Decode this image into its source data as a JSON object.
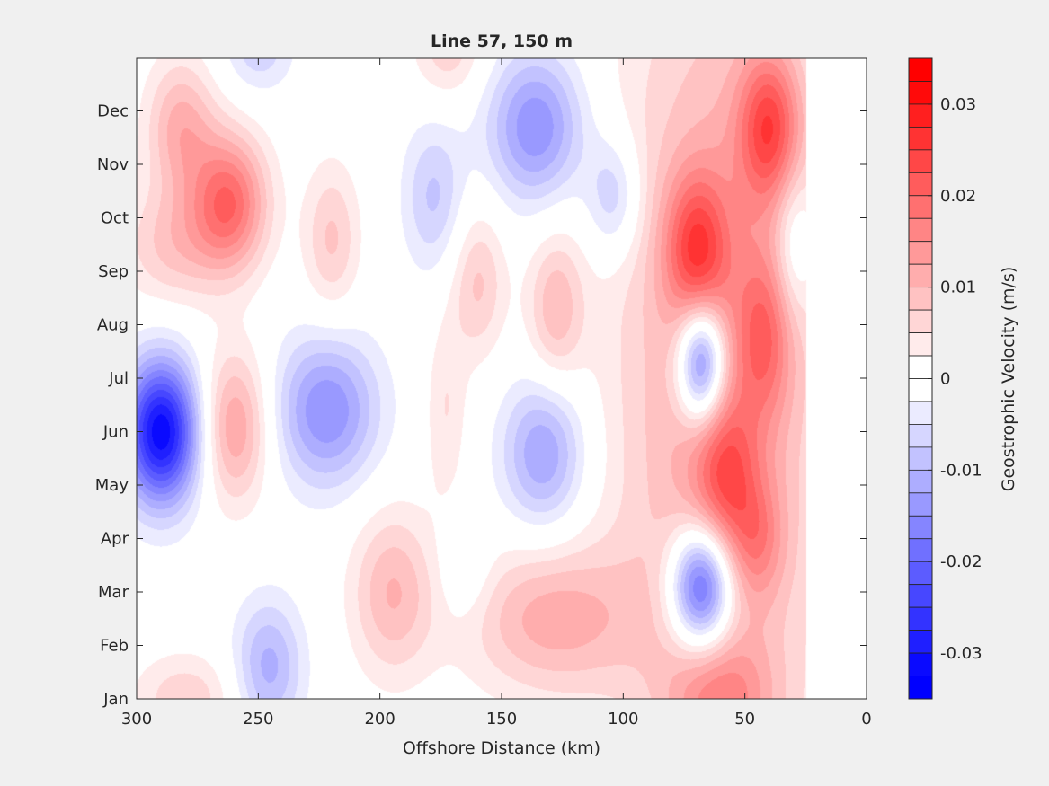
{
  "chart_data": {
    "type": "heatmap",
    "subtype": "filled-contour",
    "title": "Line 57, 150 m",
    "xlabel": "Offshore Distance (km)",
    "ylabel": "",
    "xlim": [
      300,
      0
    ],
    "x_reversed": true,
    "x_ticks": [
      300,
      250,
      200,
      150,
      100,
      50,
      0
    ],
    "x_data_extent": [
      300,
      25
    ],
    "y_ticks": [
      "Jan",
      "Feb",
      "Mar",
      "Apr",
      "May",
      "Jun",
      "Jul",
      "Aug",
      "Sep",
      "Oct",
      "Nov",
      "Dec"
    ],
    "ylim_months": [
      0,
      12
    ],
    "colorbar": {
      "label": "Geostrophic Velocity (m/s)",
      "range": [
        -0.035,
        0.035
      ],
      "level_step": 0.0025,
      "ticks": [
        0.03,
        0.02,
        0.01,
        0,
        -0.01,
        -0.02,
        -0.03
      ],
      "tick_labels": [
        "0.03",
        "0.02",
        "0.01",
        "0",
        "-0.01",
        "-0.02",
        "-0.03"
      ],
      "colormap": {
        "negative": "#0000ff",
        "zero": "#ffffff",
        "positive": "#ff0000"
      }
    },
    "features_km_month_amp": [
      {
        "km": 290,
        "month": 5.0,
        "amp": -0.032,
        "skm": 11,
        "smo": 0.95
      },
      {
        "km": 262,
        "month": 9.3,
        "amp": 0.019,
        "skm": 11,
        "smo": 0.9
      },
      {
        "km": 282,
        "month": 10.7,
        "amp": 0.011,
        "skm": 10,
        "smo": 0.9
      },
      {
        "km": 285,
        "month": 8.5,
        "amp": 0.008,
        "skm": 15,
        "smo": 0.8
      },
      {
        "km": 260,
        "month": 5.1,
        "amp": 0.013,
        "skm": 10,
        "smo": 1.0
      },
      {
        "km": 222,
        "month": 5.4,
        "amp": -0.015,
        "skm": 15,
        "smo": 1.0
      },
      {
        "km": 246,
        "month": 0.6,
        "amp": -0.011,
        "skm": 10,
        "smo": 0.9
      },
      {
        "km": 250,
        "month": 12.2,
        "amp": -0.007,
        "skm": 10,
        "smo": 0.6
      },
      {
        "km": 195,
        "month": 2.0,
        "amp": 0.01,
        "skm": 12,
        "smo": 1.1
      },
      {
        "km": 280,
        "month": 0.0,
        "amp": 0.007,
        "skm": 15,
        "smo": 0.6
      },
      {
        "km": 220,
        "month": 8.6,
        "amp": 0.008,
        "skm": 8,
        "smo": 1.0
      },
      {
        "km": 178,
        "month": 9.4,
        "amp": -0.008,
        "skm": 9,
        "smo": 1.0
      },
      {
        "km": 136,
        "month": 10.7,
        "amp": -0.015,
        "skm": 14,
        "smo": 1.0
      },
      {
        "km": 104,
        "month": 9.4,
        "amp": -0.009,
        "skm": 8,
        "smo": 0.8
      },
      {
        "km": 133,
        "month": 4.6,
        "amp": -0.013,
        "skm": 12,
        "smo": 1.0
      },
      {
        "km": 160,
        "month": 7.8,
        "amp": 0.008,
        "skm": 8,
        "smo": 1.0
      },
      {
        "km": 128,
        "month": 7.3,
        "amp": 0.009,
        "skm": 8,
        "smo": 1.0
      },
      {
        "km": 172,
        "month": 12.2,
        "amp": 0.007,
        "skm": 10,
        "smo": 0.7
      },
      {
        "km": 165,
        "month": 2.4,
        "amp": -0.004,
        "skm": 8,
        "smo": 0.7
      },
      {
        "km": 130,
        "month": 1.5,
        "amp": 0.011,
        "skm": 25,
        "smo": 1.0
      },
      {
        "km": 173,
        "month": 5.4,
        "amp": 0.005,
        "skm": 6,
        "smo": 1.2
      },
      {
        "km": 60,
        "month": 6.0,
        "amp": 0.013,
        "skm": 30,
        "smo": 6.0
      },
      {
        "km": 70,
        "month": 8.4,
        "amp": 0.016,
        "skm": 9,
        "smo": 1.0
      },
      {
        "km": 40,
        "month": 10.7,
        "amp": 0.018,
        "skm": 9,
        "smo": 1.0
      },
      {
        "km": 58,
        "month": 4.2,
        "amp": 0.012,
        "skm": 9,
        "smo": 1.0
      },
      {
        "km": 42,
        "month": 6.8,
        "amp": 0.011,
        "skm": 8,
        "smo": 1.1
      },
      {
        "km": 45,
        "month": 3.0,
        "amp": 0.008,
        "skm": 8,
        "smo": 0.8
      },
      {
        "km": 60,
        "month": 0.0,
        "amp": 0.01,
        "skm": 15,
        "smo": 0.8
      },
      {
        "km": 68,
        "month": 6.3,
        "amp": -0.026,
        "skm": 7,
        "smo": 0.8
      },
      {
        "km": 68,
        "month": 2.1,
        "amp": -0.028,
        "skm": 9,
        "smo": 0.8
      },
      {
        "km": 30,
        "month": 8.5,
        "amp": -0.008,
        "skm": 6,
        "smo": 1.0
      }
    ]
  }
}
